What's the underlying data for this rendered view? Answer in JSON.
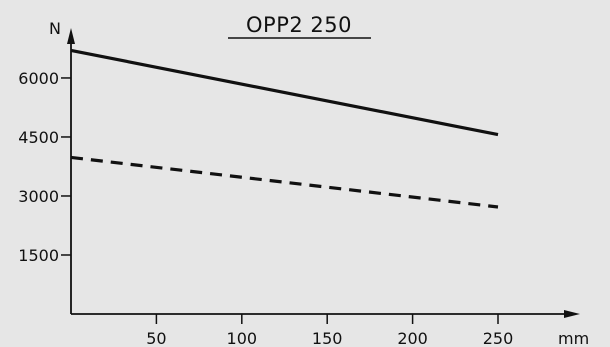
{
  "chart_data": {
    "type": "line",
    "title": "OPP2  250",
    "xlabel": "mm",
    "ylabel": "N",
    "xlim": [
      0,
      250
    ],
    "ylim": [
      0,
      6750
    ],
    "xticks": [
      50,
      100,
      150,
      200,
      250
    ],
    "yticks": [
      1500,
      3000,
      4500,
      6000
    ],
    "grid": false,
    "series": [
      {
        "style": "solid",
        "x": [
          0,
          250
        ],
        "y": [
          6700,
          4560
        ]
      },
      {
        "style": "dashed",
        "x": [
          0,
          250
        ],
        "y": [
          3980,
          2720
        ]
      }
    ]
  }
}
